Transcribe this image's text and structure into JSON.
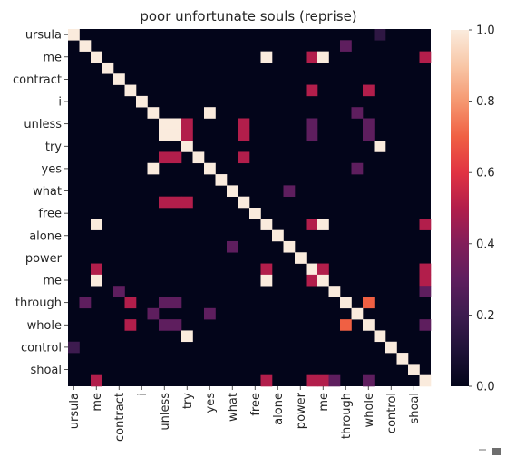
{
  "chart_data": {
    "type": "heatmap",
    "title": "poor unfortunate souls (reprise)",
    "xlabel": "",
    "ylabel": "",
    "tokens": [
      "ursula",
      "",
      "me",
      "",
      "contract",
      "",
      "i",
      "",
      "unless",
      "",
      "try",
      "",
      "yes",
      "",
      "what",
      "",
      "free",
      "",
      "alone",
      "",
      "power",
      "",
      "me",
      "",
      "through",
      "",
      "whole",
      "",
      "control",
      "",
      "shoal",
      ""
    ],
    "x_tick_labels": [
      "ursula",
      "me",
      "contract",
      "i",
      "unless",
      "try",
      "yes",
      "what",
      "free",
      "alone",
      "power",
      "me",
      "through",
      "whole",
      "control",
      "shoal"
    ],
    "y_tick_labels": [
      "ursula",
      "me",
      "contract",
      "i",
      "unless",
      "try",
      "yes",
      "what",
      "free",
      "alone",
      "power",
      "me",
      "through",
      "whole",
      "control",
      "shoal"
    ],
    "colorbar": {
      "min": 0.0,
      "max": 1.0,
      "ticks": [
        "0.0",
        "0.2",
        "0.4",
        "0.6",
        "0.8",
        "1.0"
      ]
    },
    "colormap": "rocket",
    "cells": [
      [
        0,
        0,
        1.0
      ],
      [
        0,
        27,
        0.15
      ],
      [
        1,
        1,
        1.0
      ],
      [
        1,
        24,
        0.3
      ],
      [
        2,
        2,
        1.0
      ],
      [
        2,
        17,
        1.0
      ],
      [
        2,
        21,
        0.5
      ],
      [
        2,
        22,
        1.0
      ],
      [
        2,
        31,
        0.5
      ],
      [
        3,
        3,
        1.0
      ],
      [
        4,
        4,
        1.0
      ],
      [
        5,
        5,
        1.0
      ],
      [
        5,
        21,
        0.5
      ],
      [
        5,
        26,
        0.5
      ],
      [
        6,
        6,
        1.0
      ],
      [
        7,
        7,
        1.0
      ],
      [
        7,
        12,
        1.0
      ],
      [
        7,
        25,
        0.3
      ],
      [
        8,
        8,
        1.0
      ],
      [
        8,
        9,
        1.0
      ],
      [
        8,
        10,
        0.5
      ],
      [
        8,
        15,
        0.5
      ],
      [
        8,
        21,
        0.3
      ],
      [
        8,
        26,
        0.3
      ],
      [
        9,
        8,
        1.0
      ],
      [
        9,
        9,
        1.0
      ],
      [
        9,
        10,
        0.5
      ],
      [
        9,
        15,
        0.5
      ],
      [
        9,
        21,
        0.3
      ],
      [
        9,
        26,
        0.3
      ],
      [
        10,
        10,
        1.0
      ],
      [
        10,
        27,
        1.0
      ],
      [
        11,
        8,
        0.5
      ],
      [
        11,
        9,
        0.5
      ],
      [
        11,
        11,
        1.0
      ],
      [
        11,
        15,
        0.5
      ],
      [
        12,
        7,
        1.0
      ],
      [
        12,
        12,
        1.0
      ],
      [
        12,
        25,
        0.3
      ],
      [
        13,
        13,
        1.0
      ],
      [
        14,
        14,
        1.0
      ],
      [
        14,
        19,
        0.3
      ],
      [
        15,
        8,
        0.5
      ],
      [
        15,
        9,
        0.5
      ],
      [
        15,
        10,
        0.5
      ],
      [
        15,
        15,
        1.0
      ],
      [
        16,
        16,
        1.0
      ],
      [
        17,
        2,
        1.0
      ],
      [
        17,
        17,
        1.0
      ],
      [
        17,
        21,
        0.5
      ],
      [
        17,
        22,
        1.0
      ],
      [
        17,
        31,
        0.5
      ],
      [
        18,
        18,
        1.0
      ],
      [
        19,
        14,
        0.3
      ],
      [
        19,
        19,
        1.0
      ],
      [
        20,
        20,
        1.0
      ],
      [
        21,
        2,
        0.5
      ],
      [
        21,
        17,
        0.5
      ],
      [
        21,
        21,
        1.0
      ],
      [
        21,
        22,
        0.5
      ],
      [
        21,
        31,
        0.5
      ],
      [
        22,
        2,
        1.0
      ],
      [
        22,
        17,
        1.0
      ],
      [
        22,
        21,
        0.5
      ],
      [
        22,
        22,
        1.0
      ],
      [
        22,
        31,
        0.5
      ],
      [
        23,
        4,
        0.3
      ],
      [
        23,
        23,
        1.0
      ],
      [
        23,
        31,
        0.3
      ],
      [
        24,
        1,
        0.3
      ],
      [
        24,
        5,
        0.5
      ],
      [
        24,
        8,
        0.3
      ],
      [
        24,
        9,
        0.3
      ],
      [
        24,
        24,
        1.0
      ],
      [
        24,
        26,
        0.7
      ],
      [
        25,
        7,
        0.3
      ],
      [
        25,
        12,
        0.3
      ],
      [
        25,
        25,
        1.0
      ],
      [
        26,
        5,
        0.5
      ],
      [
        26,
        8,
        0.3
      ],
      [
        26,
        9,
        0.3
      ],
      [
        26,
        24,
        0.7
      ],
      [
        26,
        26,
        1.0
      ],
      [
        26,
        31,
        0.3
      ],
      [
        27,
        10,
        1.0
      ],
      [
        27,
        27,
        1.0
      ],
      [
        28,
        0,
        0.2
      ],
      [
        28,
        28,
        1.0
      ],
      [
        29,
        29,
        1.0
      ],
      [
        30,
        30,
        1.0
      ],
      [
        31,
        2,
        0.5
      ],
      [
        31,
        17,
        0.5
      ],
      [
        31,
        21,
        0.5
      ],
      [
        31,
        22,
        0.5
      ],
      [
        31,
        23,
        0.3
      ],
      [
        31,
        26,
        0.3
      ],
      [
        31,
        31,
        1.0
      ]
    ]
  }
}
